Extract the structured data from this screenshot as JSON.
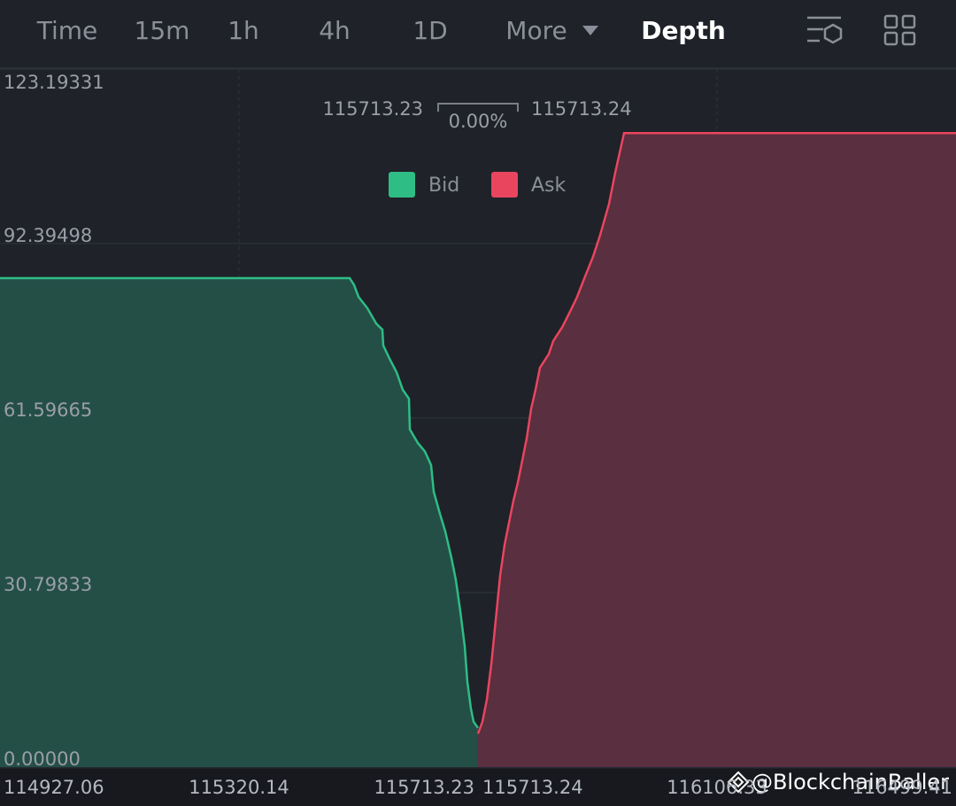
{
  "tabs": [
    "Time",
    "15m",
    "1h",
    "4h",
    "1D",
    "More",
    "Depth"
  ],
  "active_tab_index": 6,
  "mid": {
    "bid_price": "115713.23",
    "spread": "0.00%",
    "ask_price": "115713.24"
  },
  "watermark": "@BlockchainBaller",
  "chart_data": {
    "type": "depth",
    "ylim": [
      0,
      123.19331
    ],
    "yticks": [
      {
        "value": 0,
        "label": "0.00000"
      },
      30.79833,
      61.59665,
      92.39498,
      123.19331
    ],
    "grid": true,
    "series": [
      {
        "name": "Bid",
        "color": "#2ebd85",
        "fill": "#244f47",
        "xlim": [
          114927.06,
          115713.23
        ],
        "xticks": [
          114927.06,
          115320.14,
          115713.23
        ],
        "x": [
          114927.06,
          115502.13,
          115509.41,
          115516.69,
          115531.25,
          115545.8,
          115556.02,
          115557.47,
          115567.64,
          115579.28,
          115589.45,
          115599.67,
          115601.13,
          115614.23,
          115625.88,
          115636.07,
          115640.44,
          115650.63,
          115659.37,
          115669.55,
          115676.83,
          115684.11,
          115691.39,
          115695.76,
          115701.58,
          115705.95,
          115713.23
        ],
        "values": [
          86.3,
          86.3,
          85.1,
          83.0,
          81.0,
          78.3,
          77.2,
          74.4,
          72.1,
          69.7,
          66.6,
          65.0,
          59.6,
          57.2,
          55.7,
          53.3,
          48.6,
          44.7,
          41.6,
          36.9,
          33.0,
          27.5,
          21.3,
          15.0,
          10.3,
          8.0,
          6.9
        ]
      },
      {
        "name": "Ask",
        "color": "#e9455f",
        "fill": "#5a2f3f",
        "xlim": [
          115713.24,
          116499.41
        ],
        "xticks": [
          115713.24,
          116106.33,
          116499.41
        ],
        "x": [
          115713.24,
          115720.52,
          115727.8,
          115735.08,
          115742.36,
          115749.64,
          115756.92,
          115764.21,
          115771.49,
          115778.77,
          115786.05,
          115793.33,
          115800.61,
          115807.89,
          115815.15,
          115829.71,
          115836.99,
          115851.55,
          115866.1,
          115876.29,
          115887.94,
          115902.5,
          115914.15,
          115928.71,
          115938.9,
          115953.46,
          116499.41
        ],
        "values": [
          5.9,
          8.0,
          11.9,
          18.1,
          25.9,
          33.8,
          39.2,
          43.1,
          47.0,
          50.2,
          54.1,
          58.0,
          63.2,
          66.6,
          70.5,
          72.9,
          75.2,
          77.6,
          80.7,
          83.0,
          86.2,
          90.1,
          93.9,
          99.4,
          104.9,
          111.9,
          111.9
        ]
      }
    ]
  }
}
